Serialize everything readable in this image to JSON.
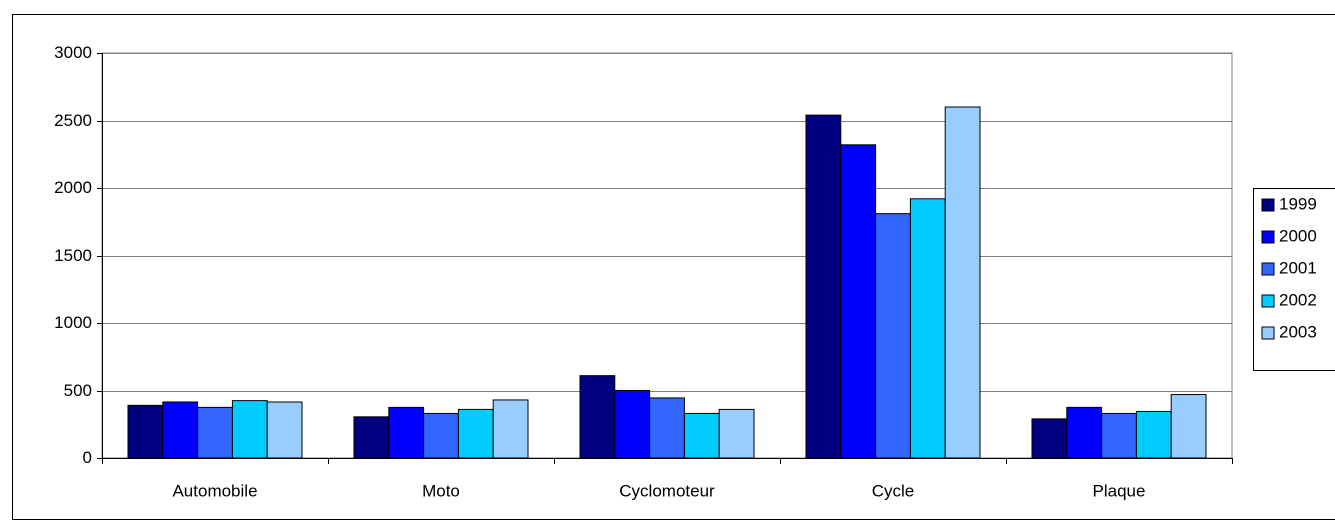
{
  "chart_data": {
    "type": "bar",
    "categories": [
      "Automobile",
      "Moto",
      "Cyclomoteur",
      "Cycle",
      "Plaque"
    ],
    "series": [
      {
        "name": "1999",
        "color": "#000080",
        "values": [
          390,
          305,
          610,
          2540,
          290
        ]
      },
      {
        "name": "2000",
        "color": "#0000ff",
        "values": [
          415,
          375,
          500,
          2320,
          375
        ]
      },
      {
        "name": "2001",
        "color": "#3366ff",
        "values": [
          375,
          330,
          445,
          1810,
          330
        ]
      },
      {
        "name": "2002",
        "color": "#00ccff",
        "values": [
          425,
          360,
          330,
          1920,
          345
        ]
      },
      {
        "name": "2003",
        "color": "#99ccff",
        "values": [
          415,
          430,
          360,
          2600,
          470
        ]
      }
    ],
    "ylim": [
      0,
      3000
    ],
    "yticks": [
      0,
      500,
      1000,
      1500,
      2000,
      2500,
      3000
    ],
    "grid": true,
    "legend": "right"
  }
}
